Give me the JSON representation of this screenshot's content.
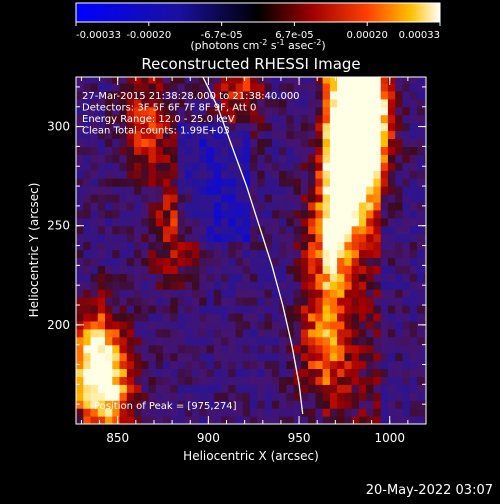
{
  "colorbar": {
    "ticks": [
      "-0.00033",
      "-0.00020",
      "-6.7e-05",
      "6.7e-05",
      "0.00020",
      "0.00033"
    ],
    "unit_label": "(photons cm",
    "unit_sup1": "-2",
    "unit_mid": " s",
    "unit_sup2": "-1",
    "unit_mid2": " asec",
    "unit_sup3": "-2",
    "unit_end": ")",
    "min": -0.00033,
    "max": 0.00033
  },
  "chart_data": {
    "type": "heatmap",
    "title": "Reconstructed RHESSI Image",
    "xlabel": "Heliocentric X (arcsec)",
    "ylabel": "Heliocentric Y (arcsec)",
    "xlim": [
      827,
      1020
    ],
    "ylim": [
      150,
      325
    ],
    "xticks": [
      850,
      900,
      950,
      1000
    ],
    "yticks": [
      200,
      250,
      300
    ],
    "grid": false,
    "annotations": [
      "27-Mar-2015 21:38:28.000 to 21:38:40.000",
      "Detectors: 3F 5F 6F 7F 8F 9F, Att 0",
      "Energy Range: 12.0 - 25.0 keV",
      "Clean    Total counts: 1.99E+03"
    ],
    "peak_text": "Position of Peak = [975,274]",
    "peak": [
      975,
      274
    ],
    "limb_curve": [
      [
        897,
        325
      ],
      [
        905,
        310
      ],
      [
        913,
        290
      ],
      [
        921,
        270
      ],
      [
        928,
        250
      ],
      [
        935,
        230
      ],
      [
        941,
        210
      ],
      [
        946,
        190
      ],
      [
        950,
        170
      ],
      [
        952,
        155
      ]
    ],
    "bright_regions": [
      {
        "x": 975,
        "y": 274,
        "level": 1.0
      },
      {
        "x": 985,
        "y": 300,
        "level": 0.95
      },
      {
        "x": 978,
        "y": 318,
        "level": 0.9
      },
      {
        "x": 965,
        "y": 240,
        "level": 0.6
      },
      {
        "x": 833,
        "y": 180,
        "level": 0.8
      },
      {
        "x": 845,
        "y": 165,
        "level": 0.6
      },
      {
        "x": 960,
        "y": 190,
        "level": 0.55
      },
      {
        "x": 865,
        "y": 300,
        "level": 0.45
      },
      {
        "x": 880,
        "y": 245,
        "level": 0.4
      },
      {
        "x": 915,
        "y": 320,
        "level": 0.45
      }
    ]
  },
  "footer": {
    "timestamp": "20-May-2022 03:07"
  }
}
